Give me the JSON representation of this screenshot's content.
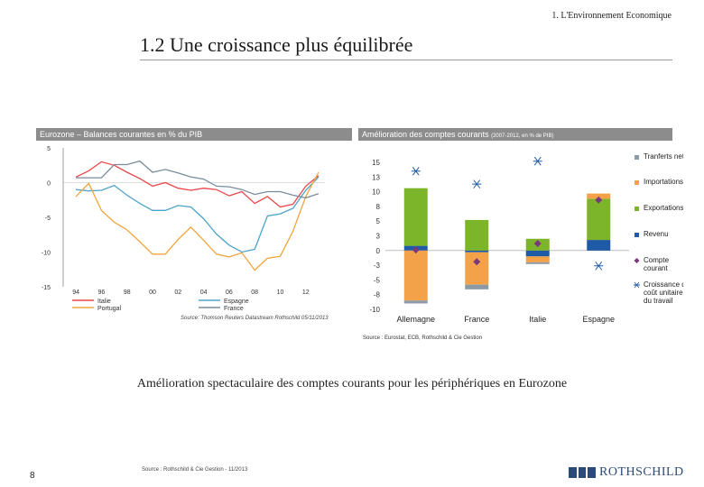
{
  "header": {
    "section_label": "1. L'Environnement Economique",
    "page_title": "1.2 Une croissance plus équilibrée"
  },
  "left_panel": {
    "header": "Eurozone – Balances courantes en % du PIB"
  },
  "right_panel": {
    "header": "Amélioration des comptes courants",
    "header_small": "(2007-2012, en % de PIB)"
  },
  "subtitle": "Amélioration spectaculaire des comptes courants pour les périphériques en Eurozone",
  "footer": {
    "page_number": "8",
    "source": "Source : Rothschild & Cie Gestion - 11/2013",
    "logo_text": "ROTHSCHILD"
  },
  "colors": {
    "italie": "#e8474b",
    "espagne": "#4fa3c8",
    "portugal": "#f0a63c",
    "france": "#7a8c99",
    "transferts": "#8c9aa6",
    "importations": "#f4a24a",
    "exportations": "#7cb52a",
    "revenu": "#1f5aa6",
    "compte": "#7a3a7a",
    "croissance": "#1f5aa6"
  },
  "chart_data": [
    {
      "type": "line",
      "title": "Eurozone – Balances courantes en % du PIB",
      "x": [
        1994,
        1995,
        1996,
        1997,
        1998,
        1999,
        2000,
        2001,
        2002,
        2003,
        2004,
        2005,
        2006,
        2007,
        2008,
        2009,
        2010,
        2011,
        2012,
        2013
      ],
      "x_ticks": [
        "94",
        "96",
        "98",
        "00",
        "02",
        "04",
        "06",
        "08",
        "10",
        "12"
      ],
      "x_tick_values": [
        1994,
        1996,
        1998,
        2000,
        2002,
        2004,
        2006,
        2008,
        2010,
        2012
      ],
      "y_ticks": [
        "5",
        "0",
        "-5",
        "-10",
        "-15"
      ],
      "y_tick_values": [
        5,
        0,
        -5,
        -10,
        -15
      ],
      "ylim": [
        -15,
        5
      ],
      "xlim": [
        1993,
        2013.5
      ],
      "series": [
        {
          "name": "Italie",
          "color_key": "italie",
          "values": [
            0.8,
            1.7,
            3.0,
            2.5,
            1.5,
            0.6,
            -0.5,
            0.0,
            -0.8,
            -1.1,
            -0.8,
            -1.0,
            -1.9,
            -1.3,
            -3.0,
            -2.0,
            -3.5,
            -3.1,
            -0.5,
            1.0
          ]
        },
        {
          "name": "Espagne",
          "color_key": "espagne",
          "values": [
            -1.0,
            -1.2,
            -1.1,
            -0.4,
            -1.8,
            -3.0,
            -4.0,
            -4.0,
            -3.3,
            -3.5,
            -5.2,
            -7.4,
            -9.0,
            -10.0,
            -9.6,
            -4.8,
            -4.5,
            -3.7,
            -1.1,
            0.8
          ]
        },
        {
          "name": "Portugal",
          "color_key": "portugal",
          "values": [
            -2.0,
            -0.1,
            -4.0,
            -5.7,
            -6.8,
            -8.5,
            -10.3,
            -10.3,
            -8.2,
            -6.4,
            -8.3,
            -10.3,
            -10.7,
            -10.1,
            -12.6,
            -10.9,
            -10.6,
            -7.0,
            -2.0,
            1.5
          ]
        },
        {
          "name": "France",
          "color_key": "france",
          "values": [
            0.7,
            0.7,
            0.7,
            2.6,
            2.6,
            3.1,
            1.5,
            1.9,
            1.4,
            0.8,
            0.5,
            -0.5,
            -0.6,
            -1.0,
            -1.7,
            -1.3,
            -1.3,
            -1.8,
            -2.2,
            -1.6
          ]
        }
      ],
      "legend": [
        "Italie",
        "Espagne",
        "Portugal",
        "France"
      ],
      "source_note": "Source: Thomson Reuters Datastream Rothschild 05/11/2013"
    },
    {
      "type": "bar",
      "stacked": true,
      "title": "Amélioration des comptes courants (2007-2012, en % de PIB)",
      "categories": [
        "Allemagne",
        "France",
        "Italie",
        "Espagne"
      ],
      "y_ticks": [
        "15",
        "13",
        "10",
        "8",
        "5",
        "3",
        "0",
        "-3",
        "-5",
        "-8",
        "-10"
      ],
      "y_tick_values": [
        15,
        12.5,
        10,
        7.5,
        5,
        2.5,
        0,
        -2.5,
        -5,
        -7.5,
        -10
      ],
      "ylim": [
        -10,
        15
      ],
      "series": [
        {
          "name": "Tranferts nets",
          "color_key": "transferts",
          "values": [
            -0.5,
            -0.8,
            -0.3,
            0
          ]
        },
        {
          "name": "Importations",
          "color_key": "importations",
          "values": [
            -8.5,
            -5.5,
            -1.0,
            0.9
          ]
        },
        {
          "name": "Exportations",
          "color_key": "exportations",
          "values": [
            9.8,
            5.2,
            2.0,
            7.0
          ]
        },
        {
          "name": "Revenu",
          "color_key": "revenu",
          "values": [
            0.8,
            -0.3,
            -1.0,
            1.8
          ]
        }
      ],
      "markers": [
        {
          "name": "Compte courant",
          "color_key": "compte",
          "shape": "diamond",
          "values": [
            0.1,
            -1.9,
            1.2,
            8.6
          ]
        },
        {
          "name": "Croissance du coût unitaire du travail",
          "color_key": "croissance",
          "shape": "asterisk",
          "values": [
            13.5,
            11.3,
            15.2,
            -2.6
          ]
        }
      ],
      "legend": [
        "Tranferts nets",
        "Importations",
        "Exportations",
        "Revenu",
        "Compte courant",
        "Croissance du coût unitaire du travail"
      ],
      "source_note": "Source : Eurostat, ECB, Rothschild & Cie Gestion"
    }
  ]
}
